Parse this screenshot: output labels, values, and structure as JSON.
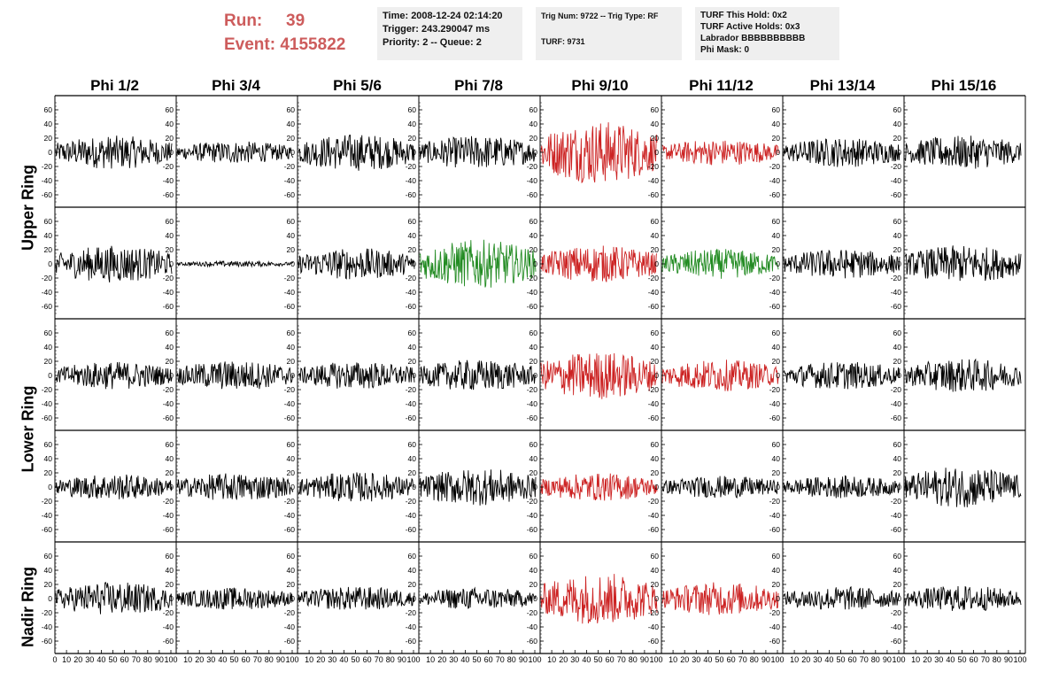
{
  "header": {
    "run_label": "Run:",
    "run_value": "39",
    "event_label": "Event:",
    "event_value": "4155822",
    "info1": [
      "Time: 2008-12-24 02:14:20",
      "Trigger: 243.290047 ms",
      "Priority: 2 -- Queue: 2"
    ],
    "info2": [
      "Trig Num: 9722 -- Trig Type: RF",
      "TURF: 9731"
    ],
    "info3": [
      "TURF This Hold: 0x2",
      "TURF Active Holds: 0x3",
      "Labrador BBBBBBBBBB",
      "Phi Mask: 0"
    ]
  },
  "chart_data": {
    "type": "line",
    "columns": [
      "Phi 1/2",
      "Phi 3/4",
      "Phi 5/6",
      "Phi 7/8",
      "Phi 9/10",
      "Phi 11/12",
      "Phi 13/14",
      "Phi 15/16"
    ],
    "row_labels": [
      "Upper Ring",
      "Lower Ring",
      "Nadir Ring"
    ],
    "y_ticks": [
      "60",
      "40",
      "20",
      "0",
      "-20",
      "-40",
      "-60"
    ],
    "x_ticks_first": [
      "0",
      "10",
      "20",
      "30",
      "40",
      "50",
      "60",
      "70",
      "80",
      "90",
      "100"
    ],
    "x_ticks": [
      "10",
      "20",
      "30",
      "40",
      "50",
      "60",
      "70",
      "80",
      "90",
      "100"
    ],
    "xlim": [
      0,
      100
    ],
    "ylim": [
      -70,
      70
    ],
    "colors": {
      "normal": "#000000",
      "red": "#cc2222",
      "green": "#228b22"
    },
    "rows": [
      [
        {
          "c": "normal",
          "a": 18
        },
        {
          "c": "normal",
          "a": 12
        },
        {
          "c": "normal",
          "a": 20
        },
        {
          "c": "normal",
          "a": 18
        },
        {
          "c": "red",
          "a": 34
        },
        {
          "c": "red",
          "a": 14
        },
        {
          "c": "normal",
          "a": 16
        },
        {
          "c": "normal",
          "a": 18
        }
      ],
      [
        {
          "c": "normal",
          "a": 20
        },
        {
          "c": "normal",
          "a": 3
        },
        {
          "c": "normal",
          "a": 17
        },
        {
          "c": "green",
          "a": 26
        },
        {
          "c": "red",
          "a": 20
        },
        {
          "c": "green",
          "a": 16
        },
        {
          "c": "normal",
          "a": 16
        },
        {
          "c": "normal",
          "a": 20
        }
      ],
      [
        {
          "c": "normal",
          "a": 15
        },
        {
          "c": "normal",
          "a": 16
        },
        {
          "c": "normal",
          "a": 15
        },
        {
          "c": "normal",
          "a": 17
        },
        {
          "c": "red",
          "a": 26
        },
        {
          "c": "red",
          "a": 17
        },
        {
          "c": "normal",
          "a": 15
        },
        {
          "c": "normal",
          "a": 18
        }
      ],
      [
        {
          "c": "normal",
          "a": 14
        },
        {
          "c": "normal",
          "a": 15
        },
        {
          "c": "normal",
          "a": 16
        },
        {
          "c": "normal",
          "a": 20
        },
        {
          "c": "red",
          "a": 15
        },
        {
          "c": "normal",
          "a": 12
        },
        {
          "c": "normal",
          "a": 12
        },
        {
          "c": "normal",
          "a": 22
        }
      ],
      [
        {
          "c": "normal",
          "a": 18
        },
        {
          "c": "normal",
          "a": 12
        },
        {
          "c": "normal",
          "a": 13
        },
        {
          "c": "normal",
          "a": 12
        },
        {
          "c": "red",
          "a": 28
        },
        {
          "c": "red",
          "a": 18
        },
        {
          "c": "normal",
          "a": 13
        },
        {
          "c": "normal",
          "a": 14
        }
      ]
    ]
  }
}
